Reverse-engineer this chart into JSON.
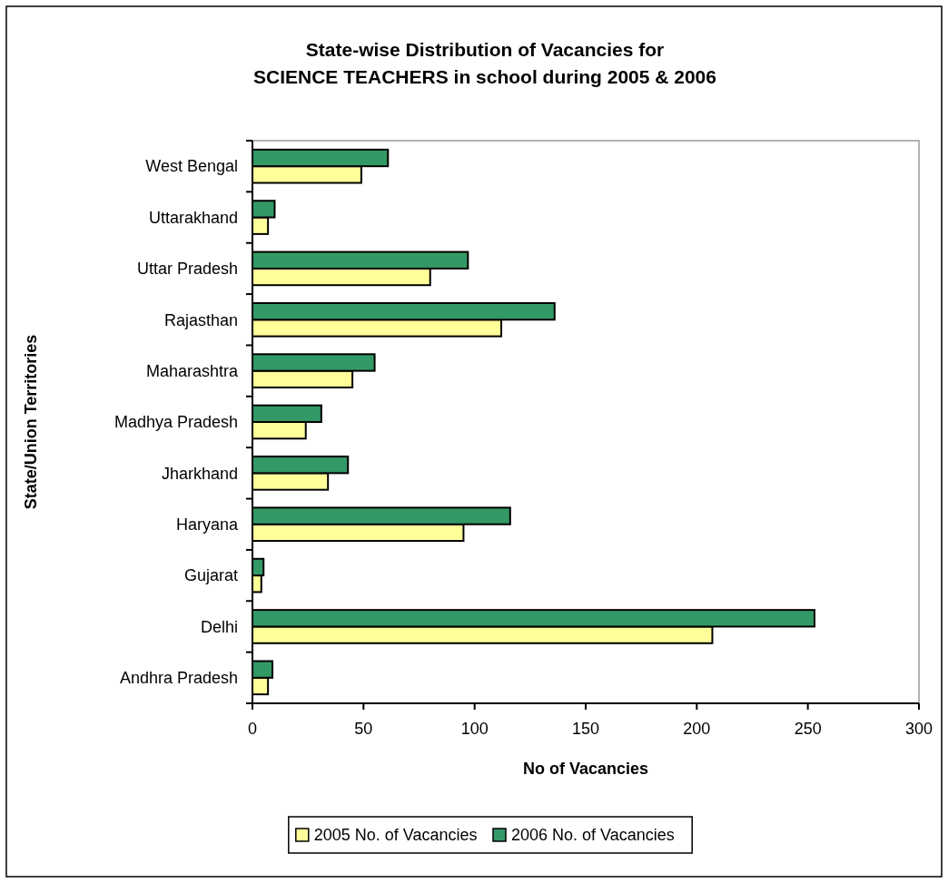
{
  "chart_data": {
    "type": "bar",
    "orientation": "horizontal",
    "title": "State-wise Distribution of Vacancies for\nSCIENCE TEACHERS in school during 2005 & 2006",
    "xlabel": "No of Vacancies",
    "ylabel": "State/Union Territories",
    "categories": [
      "West Bengal",
      "Uttarakhand",
      "Uttar Pradesh",
      "Rajasthan",
      "Maharashtra",
      "Madhya Pradesh",
      "Jharkhand",
      "Haryana",
      "Gujarat",
      "Delhi",
      "Andhra Pradesh"
    ],
    "series": [
      {
        "name": "2005 No. of Vacancies",
        "color": "#ffff99",
        "values": [
          49,
          7,
          80,
          112,
          45,
          24,
          34,
          95,
          4,
          207,
          7
        ]
      },
      {
        "name": "2006 No. of Vacancies",
        "color": "#339966",
        "values": [
          61,
          10,
          97,
          136,
          55,
          31,
          43,
          116,
          5,
          253,
          9
        ]
      }
    ],
    "xlim": [
      0,
      300
    ],
    "xticks": [
      0,
      50,
      100,
      150,
      200,
      250,
      300
    ],
    "grid": false,
    "legend": "bottom"
  }
}
